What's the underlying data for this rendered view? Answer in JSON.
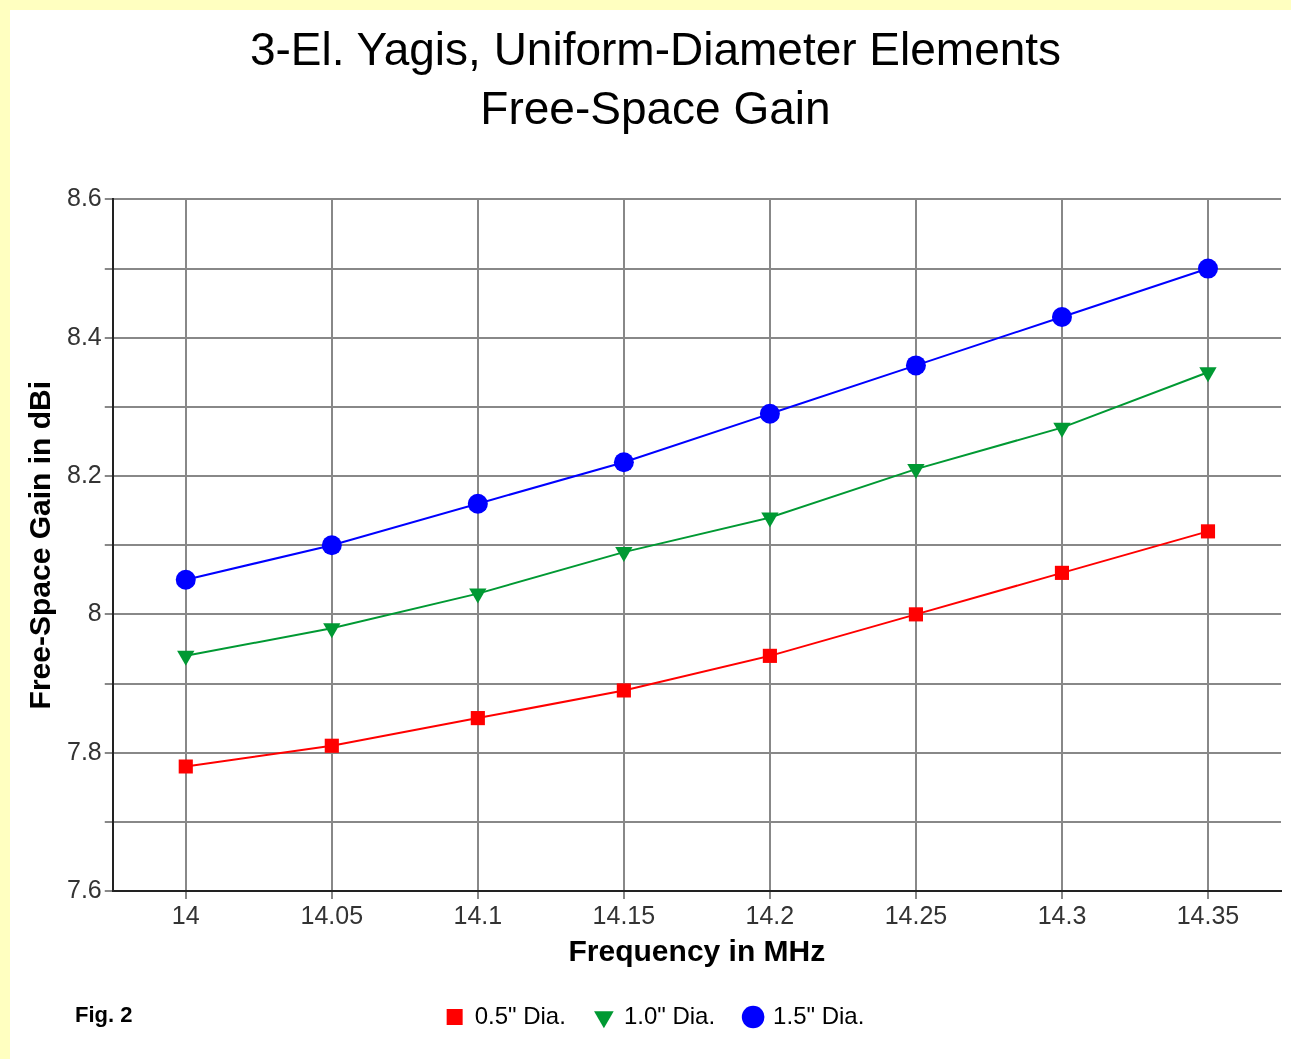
{
  "chart_data": {
    "type": "line",
    "title": "3-El. Yagis, Uniform-Diameter Elements",
    "subtitle": "Free-Space Gain",
    "xlabel": "Frequency in MHz",
    "ylabel": "Free-Space Gain in dBi",
    "x": [
      14,
      14.05,
      14.1,
      14.15,
      14.2,
      14.25,
      14.3,
      14.35
    ],
    "series": [
      {
        "name": "0.5\" Dia.",
        "color": "#ff0000",
        "marker": "square",
        "values": [
          7.78,
          7.81,
          7.85,
          7.89,
          7.94,
          8.0,
          8.06,
          8.12
        ]
      },
      {
        "name": "1.0\" Dia.",
        "color": "#009933",
        "marker": "triangle",
        "values": [
          7.94,
          7.98,
          8.03,
          8.09,
          8.14,
          8.21,
          8.27,
          8.35
        ]
      },
      {
        "name": "1.5\" Dia.",
        "color": "#0000ff",
        "marker": "circle",
        "values": [
          8.05,
          8.1,
          8.16,
          8.22,
          8.29,
          8.36,
          8.43,
          8.5
        ]
      }
    ],
    "xlim": [
      13.975,
      14.375
    ],
    "xticks": [
      14,
      14.05,
      14.1,
      14.15,
      14.2,
      14.25,
      14.3,
      14.35
    ],
    "ylim": [
      7.6,
      8.6
    ],
    "yticks": [
      7.6,
      {
        "value": 7.7,
        "label": null
      },
      7.8,
      {
        "value": 7.9,
        "label": null
      },
      8,
      {
        "value": 8.1,
        "label": null
      },
      8.2,
      {
        "value": 8.3,
        "label": null
      },
      8.4,
      {
        "value": 8.5,
        "label": null
      },
      8.6
    ],
    "grid": true,
    "legend": "bottom",
    "line_style": "solid",
    "annotations": [
      "Fig. 2"
    ]
  }
}
